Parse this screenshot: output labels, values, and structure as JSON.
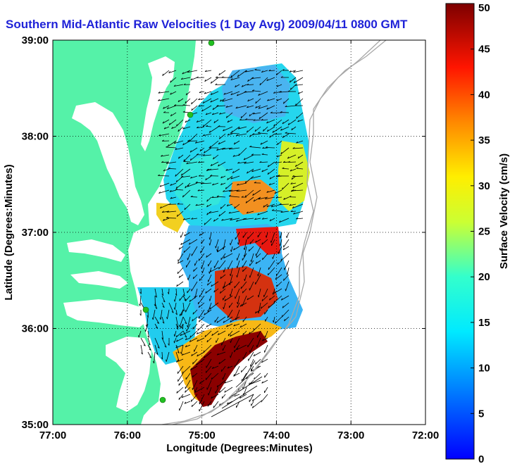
{
  "chart_data": {
    "type": "heatmap",
    "title": "Southern Mid-Atlantic Raw Velocities (1 Day Avg) 2009/04/11 0800 GMT",
    "xlabel": "Longitude (Degrees:Minutes)",
    "ylabel": "Latitude (Degrees:Minutes)",
    "x_ticks": [
      "77:00",
      "76:00",
      "75:00",
      "74:00",
      "73:00",
      "72:00"
    ],
    "y_ticks": [
      "39:00",
      "38:00",
      "37:00",
      "36:00",
      "35:00"
    ],
    "xlim": [
      -77,
      -72
    ],
    "ylim": [
      35,
      39
    ],
    "grid": true,
    "colorbar": {
      "label": "Surface Velocity (cm/s)",
      "range": [
        0,
        50
      ],
      "ticks": [
        "0",
        "5",
        "10",
        "15",
        "20",
        "25",
        "30",
        "35",
        "40",
        "45",
        "50"
      ],
      "colormap": "jet"
    },
    "colors": {
      "land": "#55f2a8",
      "title": "#1f22d8",
      "station": "#22c022",
      "isobath": "#a8a8a8"
    }
  }
}
